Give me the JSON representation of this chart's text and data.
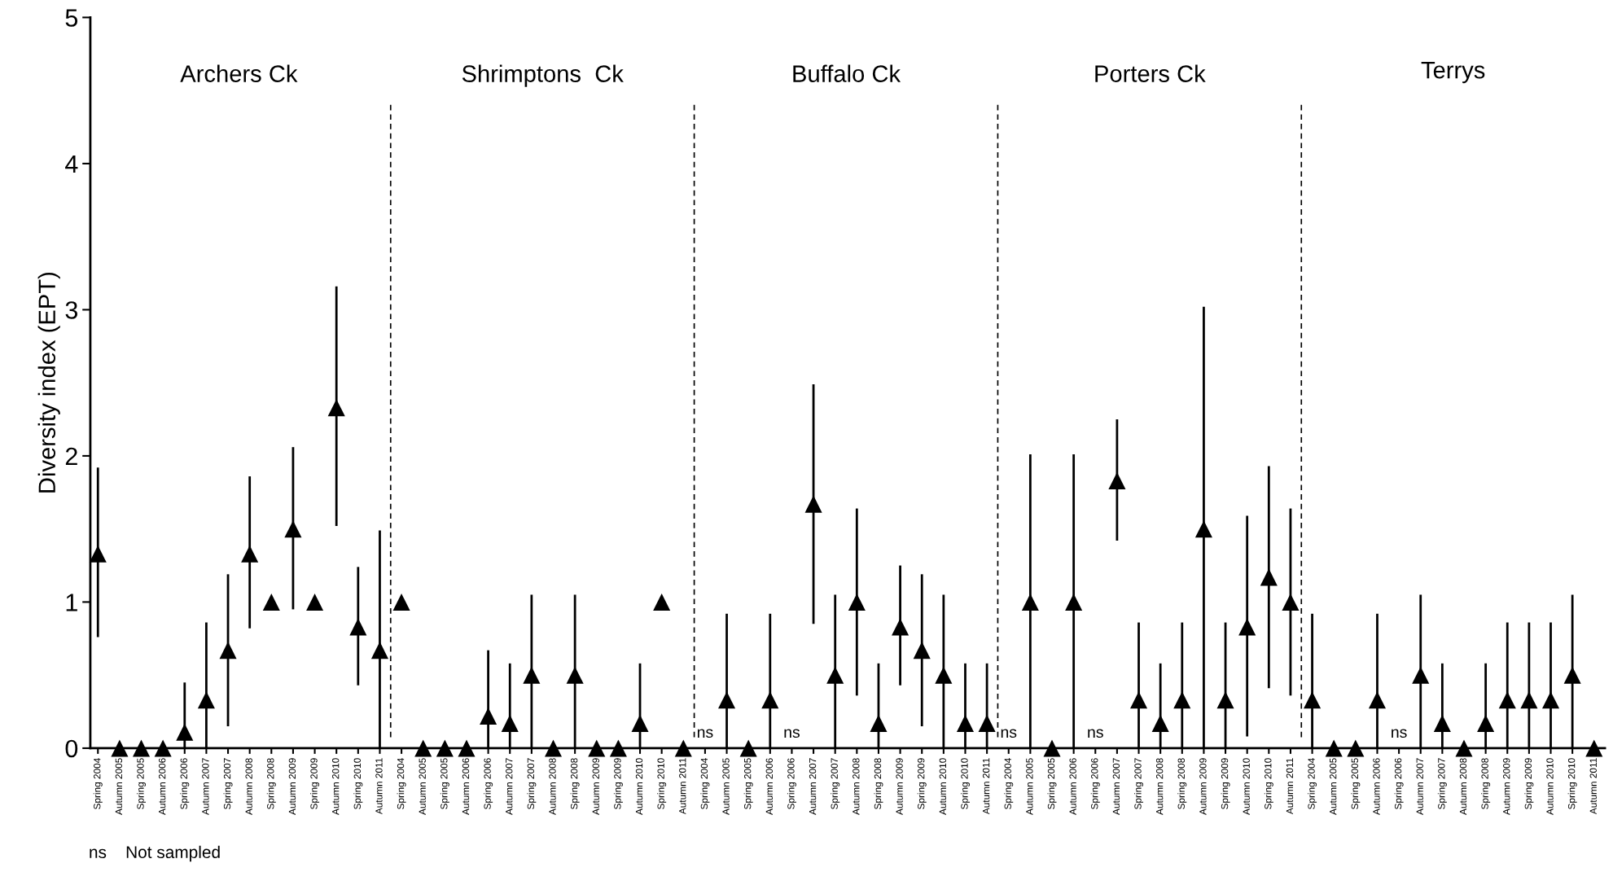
{
  "chart_data": {
    "type": "scatter",
    "ylabel": "Diversity index (EPT)",
    "ylim": [
      0,
      5
    ],
    "yticks": [
      0,
      1,
      2,
      3,
      4,
      5
    ],
    "marker": "triangle",
    "grid": false,
    "categories": [
      "Spring 2004",
      "Autumn 2005",
      "Spring 2005",
      "Autumn 2006",
      "Spring 2006",
      "Autumn 2007",
      "Spring 2007",
      "Autumn 2008",
      "Spring 2008",
      "Autumn 2009",
      "Spring 2009",
      "Autumn 2010",
      "Spring 2010",
      "Autumn 2011",
      "Spring 2004",
      "Autumn 2005",
      "Spring 2005",
      "Autumn 2006",
      "Spring 2006",
      "Autumn 2007",
      "Spring 2007",
      "Autumn 2008",
      "Spring 2008",
      "Autumn 2009",
      "Spring 2009",
      "Autumn 2010",
      "Spring 2010",
      "Autumn 2011",
      "Spring 2004",
      "Autumn 2005",
      "Spring 2005",
      "Autumn 2006",
      "Spring 2006",
      "Autumn 2007",
      "Spring 2007",
      "Autumn 2008",
      "Spring 2008",
      "Autumn 2009",
      "Spring 2009",
      "Autumn 2010",
      "Spring 2010",
      "Autumn 2011",
      "Spring 2004",
      "Autumn 2005",
      "Spring 2005",
      "Autumn 2006",
      "Spring 2006",
      "Autumn 2007",
      "Spring 2007",
      "Autumn 2008",
      "Spring 2008",
      "Autumn 2009",
      "Spring 2009",
      "Autumn 2010",
      "Spring 2010",
      "Autumn 2011",
      "Spring 2004",
      "Autumn 2005",
      "Spring 2005",
      "Autumn 2006",
      "Spring 2006",
      "Autumn 2007",
      "Spring 2007",
      "Autumn 2008",
      "Spring 2008",
      "Autumn 2009",
      "Spring 2009",
      "Autumn 2010",
      "Spring 2010",
      "Autumn 2011"
    ],
    "series": [
      {
        "color": "#000000",
        "values": [
          1.33,
          0,
          0,
          0,
          0.11,
          0.33,
          0.67,
          1.33,
          1,
          1.5,
          1,
          2.33,
          0.83,
          0.67,
          1,
          0,
          0,
          0,
          0.22,
          0.17,
          0.5,
          0,
          0.5,
          0,
          0,
          0.17,
          1,
          0,
          null,
          0.33,
          0,
          0.33,
          null,
          1.67,
          0.5,
          1,
          0.17,
          0.83,
          0.67,
          0.5,
          0.17,
          0.17,
          null,
          1,
          0,
          1,
          null,
          1.83,
          0.33,
          0.17,
          0.33,
          1.5,
          0.33,
          0.83,
          1.17,
          1,
          0.33,
          0,
          0,
          0.33,
          null,
          0.5,
          0.17,
          0,
          0.17,
          0.33,
          0.33,
          0.33,
          0.5,
          0
        ],
        "errors": [
          [
            0.76,
            1.92
          ],
          null,
          null,
          null,
          [
            0,
            0.45
          ],
          [
            0,
            0.86
          ],
          [
            0.15,
            1.19
          ],
          [
            0.82,
            1.86
          ],
          null,
          [
            0.95,
            2.06
          ],
          null,
          [
            1.52,
            3.16
          ],
          [
            0.43,
            1.24
          ],
          [
            0,
            1.49
          ],
          null,
          null,
          null,
          null,
          [
            0,
            0.67
          ],
          [
            0,
            0.58
          ],
          [
            0,
            1.05
          ],
          null,
          [
            0,
            1.05
          ],
          null,
          null,
          [
            0,
            0.58
          ],
          null,
          null,
          null,
          [
            0,
            0.92
          ],
          null,
          [
            0,
            0.92
          ],
          null,
          [
            0.85,
            2.49
          ],
          [
            0,
            1.05
          ],
          [
            0.36,
            1.64
          ],
          [
            0,
            0.58
          ],
          [
            0.43,
            1.25
          ],
          [
            0.15,
            1.19
          ],
          [
            0,
            1.05
          ],
          [
            0,
            0.58
          ],
          [
            0,
            0.58
          ],
          null,
          [
            0,
            2.01
          ],
          null,
          [
            0,
            2.01
          ],
          null,
          [
            1.42,
            2.25
          ],
          [
            0,
            0.86
          ],
          [
            0,
            0.58
          ],
          [
            0,
            0.86
          ],
          [
            0,
            3.02
          ],
          [
            0,
            0.86
          ],
          [
            0.08,
            1.59
          ],
          [
            0.41,
            1.93
          ],
          [
            0.36,
            1.64
          ],
          [
            0,
            0.92
          ],
          null,
          null,
          [
            0,
            0.92
          ],
          null,
          [
            0,
            1.05
          ],
          [
            0,
            0.58
          ],
          null,
          [
            0,
            0.58
          ],
          [
            0,
            0.86
          ],
          [
            0,
            0.86
          ],
          [
            0,
            0.86
          ],
          [
            0,
            1.05
          ],
          null
        ]
      }
    ],
    "annotations": [
      "Archers Ck",
      "Shrimptons  Ck",
      "Buffalo Ck",
      "Porters Ck",
      "Terrys",
      "ns",
      "ns",
      "ns",
      "ns",
      "ns",
      "ns    Not sampled"
    ]
  }
}
